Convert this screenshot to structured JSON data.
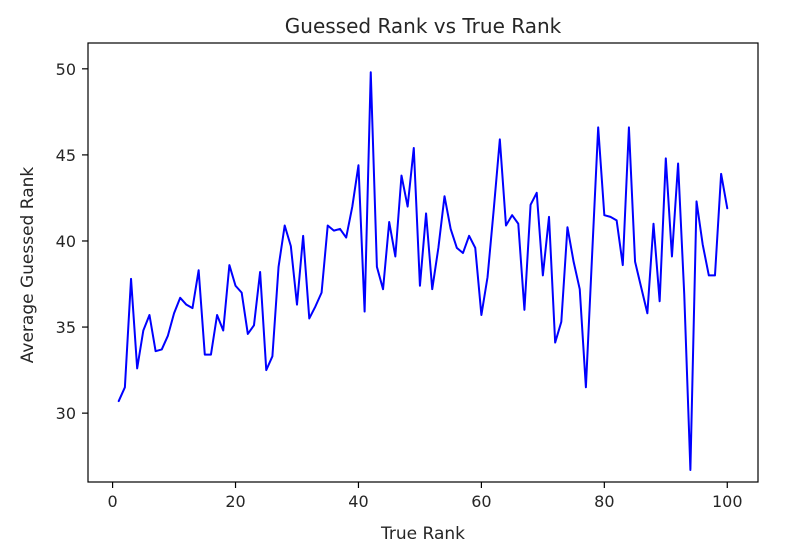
{
  "chart_data": {
    "type": "line",
    "title": "Guessed Rank vs True Rank",
    "xlabel": "True Rank",
    "ylabel": "Average Guessed Rank",
    "xlim": [
      -4,
      105
    ],
    "ylim": [
      26,
      51.5
    ],
    "xticks": [
      0,
      20,
      40,
      60,
      80,
      100
    ],
    "yticks": [
      30,
      35,
      40,
      45,
      50
    ],
    "grid": false,
    "line_color": "#0000ff",
    "series": [
      {
        "x": [
          1,
          2,
          3,
          4,
          5,
          6,
          7,
          8,
          9,
          10,
          11,
          12,
          13,
          14,
          15,
          16,
          17,
          18,
          19,
          20,
          21,
          22,
          23,
          24,
          25,
          26,
          27,
          28,
          29,
          30,
          31,
          32,
          33,
          34,
          35,
          36,
          37,
          38,
          39,
          40,
          41,
          42,
          43,
          44,
          45,
          46,
          47,
          48,
          49,
          50,
          51,
          52,
          53,
          54,
          55,
          56,
          57,
          58,
          59,
          60,
          61,
          62,
          63,
          64,
          65,
          66,
          67,
          68,
          69,
          70,
          71,
          72,
          73,
          74,
          75,
          76,
          77,
          78,
          79,
          80,
          81,
          82,
          83,
          84,
          85,
          86,
          87,
          88,
          89,
          90,
          91,
          92,
          93,
          94,
          95,
          96,
          97,
          98,
          99,
          100
        ],
        "values": [
          30.7,
          31.5,
          37.8,
          32.6,
          34.8,
          35.7,
          33.6,
          33.7,
          34.5,
          35.8,
          36.7,
          36.3,
          36.1,
          38.3,
          33.4,
          33.4,
          35.7,
          34.8,
          38.6,
          37.4,
          37.0,
          34.6,
          35.1,
          38.2,
          32.5,
          33.3,
          38.5,
          40.9,
          39.7,
          36.3,
          40.3,
          35.5,
          36.2,
          37.0,
          40.9,
          40.6,
          40.7,
          40.2,
          42.0,
          44.4,
          35.9,
          49.8,
          38.5,
          37.2,
          41.1,
          39.1,
          43.8,
          42.0,
          45.4,
          37.4,
          41.6,
          37.2,
          39.6,
          42.6,
          40.7,
          39.6,
          39.3,
          40.3,
          39.6,
          35.7,
          37.9,
          41.8,
          45.9,
          40.9,
          41.5,
          41.0,
          36.0,
          42.1,
          42.8,
          38.0,
          41.4,
          34.1,
          35.3,
          40.8,
          38.8,
          37.2,
          31.5,
          39.1,
          46.6,
          41.5,
          41.4,
          41.2,
          38.6,
          46.6,
          38.8,
          37.3,
          35.8,
          41.0,
          36.5,
          44.8,
          39.1,
          44.5,
          36.9,
          26.7,
          42.3,
          39.8,
          38.0,
          38.0,
          43.9,
          41.9
        ]
      }
    ]
  }
}
